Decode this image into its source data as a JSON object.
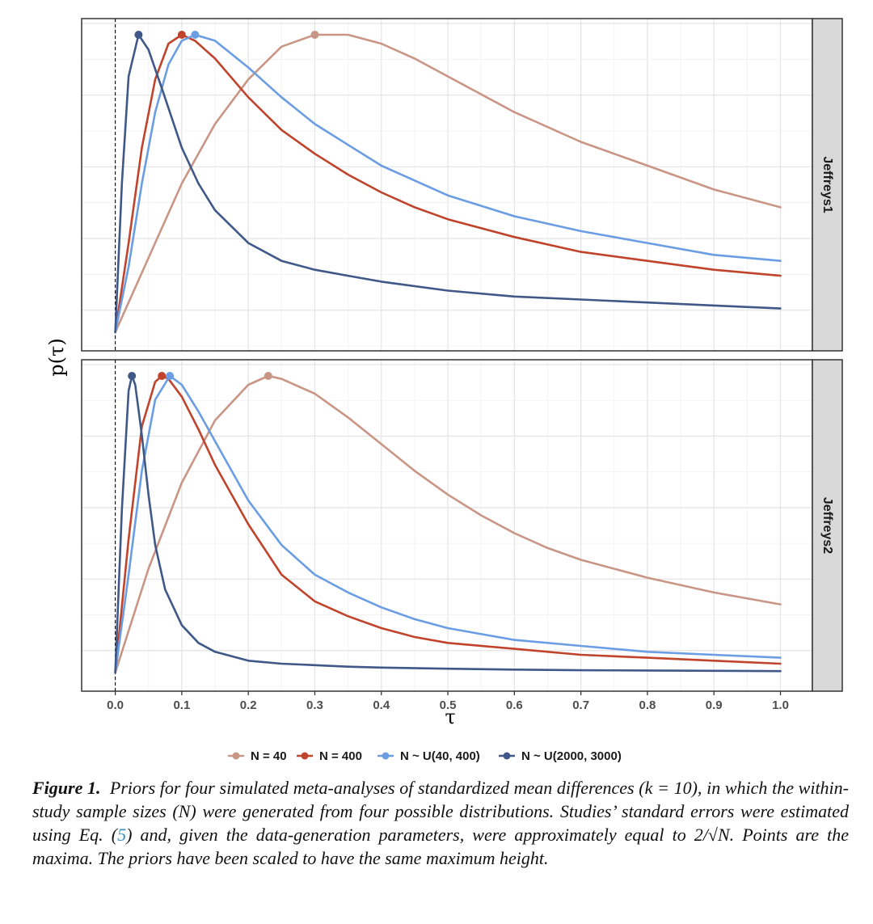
{
  "chart_data": {
    "type": "line",
    "xlabel": "τ",
    "ylabel": "p(τ)",
    "xlim": [
      0,
      1
    ],
    "x_ticks": [
      "0.0",
      "0.1",
      "0.2",
      "0.3",
      "0.4",
      "0.5",
      "0.6",
      "0.7",
      "0.8",
      "0.9",
      "1.0"
    ],
    "grid": true,
    "reference_line": {
      "x": 0,
      "style": "dashed"
    },
    "legend_position": "bottom",
    "series_meta": [
      {
        "name": "N = 40",
        "color": "#c99585"
      },
      {
        "name": "N = 400",
        "color": "#c0432c"
      },
      {
        "name": "N ~ U(40, 400)",
        "color": "#6a9de3"
      },
      {
        "name": "N ~ U(2000, 3000)",
        "color": "#3f5888"
      }
    ],
    "panels": [
      {
        "strip": "Jeffreys1",
        "series": [
          {
            "name": "N = 40",
            "peak_x": 0.3,
            "x": [
              0,
              0.05,
              0.1,
              0.15,
              0.2,
              0.25,
              0.3,
              0.35,
              0.4,
              0.45,
              0.5,
              0.6,
              0.7,
              0.8,
              0.9,
              1.0
            ],
            "y": [
              0.0,
              0.25,
              0.5,
              0.7,
              0.85,
              0.96,
              1.0,
              1.0,
              0.97,
              0.92,
              0.86,
              0.74,
              0.64,
              0.56,
              0.48,
              0.42
            ]
          },
          {
            "name": "N = 400",
            "peak_x": 0.1,
            "x": [
              0,
              0.02,
              0.04,
              0.06,
              0.08,
              0.1,
              0.12,
              0.15,
              0.2,
              0.25,
              0.3,
              0.35,
              0.4,
              0.45,
              0.5,
              0.6,
              0.7,
              0.8,
              0.9,
              1.0
            ],
            "y": [
              0.0,
              0.3,
              0.62,
              0.85,
              0.97,
              1.0,
              0.98,
              0.92,
              0.79,
              0.68,
              0.6,
              0.53,
              0.47,
              0.42,
              0.38,
              0.32,
              0.27,
              0.24,
              0.21,
              0.19
            ]
          },
          {
            "name": "N ~ U(40, 400)",
            "peak_x": 0.12,
            "x": [
              0,
              0.02,
              0.04,
              0.06,
              0.08,
              0.1,
              0.12,
              0.15,
              0.2,
              0.25,
              0.3,
              0.35,
              0.4,
              0.45,
              0.5,
              0.6,
              0.7,
              0.8,
              0.9,
              1.0
            ],
            "y": [
              0.0,
              0.22,
              0.5,
              0.74,
              0.9,
              0.98,
              1.0,
              0.98,
              0.89,
              0.79,
              0.7,
              0.63,
              0.56,
              0.51,
              0.46,
              0.39,
              0.34,
              0.3,
              0.26,
              0.24
            ]
          },
          {
            "name": "N ~ U(2000, 3000)",
            "peak_x": 0.035,
            "x": [
              0,
              0.01,
              0.02,
              0.035,
              0.05,
              0.07,
              0.1,
              0.125,
              0.15,
              0.2,
              0.25,
              0.3,
              0.35,
              0.4,
              0.5,
              0.6,
              0.7,
              0.8,
              0.9,
              1.0
            ],
            "y": [
              0.0,
              0.5,
              0.86,
              1.0,
              0.95,
              0.82,
              0.62,
              0.5,
              0.41,
              0.3,
              0.24,
              0.21,
              0.19,
              0.17,
              0.14,
              0.12,
              0.11,
              0.1,
              0.09,
              0.08
            ]
          }
        ]
      },
      {
        "strip": "Jeffreys2",
        "series": [
          {
            "name": "N = 40",
            "peak_x": 0.23,
            "x": [
              0,
              0.05,
              0.1,
              0.15,
              0.2,
              0.23,
              0.25,
              0.3,
              0.35,
              0.4,
              0.45,
              0.5,
              0.55,
              0.6,
              0.65,
              0.7,
              0.8,
              0.9,
              1.0
            ],
            "y": [
              0.0,
              0.35,
              0.64,
              0.85,
              0.97,
              1.0,
              0.99,
              0.94,
              0.86,
              0.77,
              0.68,
              0.6,
              0.53,
              0.47,
              0.42,
              0.38,
              0.32,
              0.27,
              0.23
            ]
          },
          {
            "name": "N = 400",
            "peak_x": 0.07,
            "x": [
              0,
              0.02,
              0.04,
              0.06,
              0.07,
              0.08,
              0.1,
              0.125,
              0.15,
              0.2,
              0.25,
              0.3,
              0.35,
              0.4,
              0.45,
              0.5,
              0.6,
              0.7,
              0.8,
              0.9,
              1.0
            ],
            "y": [
              0.0,
              0.45,
              0.83,
              0.98,
              1.0,
              0.99,
              0.93,
              0.82,
              0.7,
              0.5,
              0.33,
              0.24,
              0.19,
              0.15,
              0.12,
              0.1,
              0.08,
              0.06,
              0.05,
              0.04,
              0.03
            ]
          },
          {
            "name": "N ~ U(40, 400)",
            "peak_x": 0.082,
            "x": [
              0,
              0.02,
              0.04,
              0.06,
              0.082,
              0.1,
              0.125,
              0.15,
              0.2,
              0.25,
              0.3,
              0.35,
              0.4,
              0.45,
              0.5,
              0.6,
              0.7,
              0.8,
              0.9,
              1.0
            ],
            "y": [
              0.0,
              0.33,
              0.68,
              0.92,
              1.0,
              0.97,
              0.88,
              0.78,
              0.58,
              0.43,
              0.33,
              0.27,
              0.22,
              0.18,
              0.15,
              0.11,
              0.09,
              0.07,
              0.06,
              0.05
            ]
          },
          {
            "name": "N ~ U(2000, 3000)",
            "peak_x": 0.025,
            "x": [
              0,
              0.01,
              0.02,
              0.025,
              0.03,
              0.04,
              0.05,
              0.06,
              0.075,
              0.1,
              0.125,
              0.15,
              0.2,
              0.25,
              0.3,
              0.35,
              0.4,
              0.5,
              0.6,
              0.7,
              0.8,
              0.9,
              1.0
            ],
            "y": [
              0.0,
              0.55,
              0.95,
              1.0,
              0.97,
              0.8,
              0.6,
              0.43,
              0.28,
              0.16,
              0.1,
              0.07,
              0.04,
              0.03,
              0.025,
              0.02,
              0.017,
              0.013,
              0.01,
              0.008,
              0.007,
              0.006,
              0.005
            ]
          }
        ]
      }
    ]
  },
  "caption": {
    "figure_label": "Figure 1.",
    "text_before_ref": "Priors for four simulated meta-analyses of standardized mean differences (k = 10), in which the within-study sample sizes (N) were generated from four possible distributions. Studies’ standard errors were estimated using Eq. (",
    "eq_ref": "5",
    "text_after_ref": ") and, given the data-generation parameters, were approximately equal to 2/√N. Points are the maxima. The priors have been scaled to have the same maximum height."
  }
}
